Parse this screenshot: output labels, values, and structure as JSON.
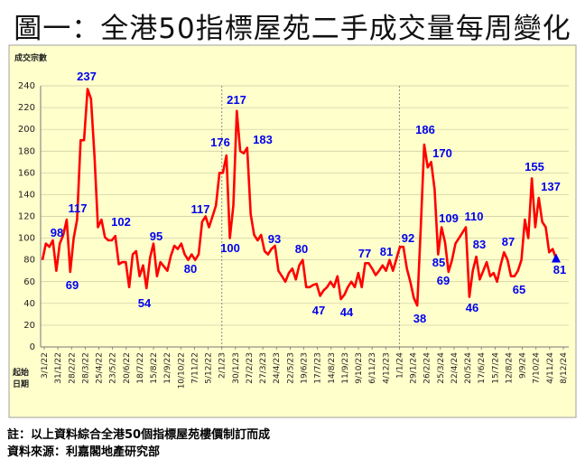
{
  "title": "圖一：全港50指標屋苑二手成交量每周變化",
  "notes": {
    "note1": "註：以上資料綜合全港50個指標屋苑樓價制訂而成",
    "note2": "資料來源：利嘉閣地產研究部"
  },
  "colors": {
    "panel": "#ffffcc",
    "line": "#ff0000",
    "label": "#0000ee",
    "marker": "#0000ee"
  },
  "chart_data": {
    "type": "line",
    "ylabel": "成交宗數",
    "xlabel": "起始日期",
    "ylim": [
      0,
      240
    ],
    "yticks": [
      0,
      20,
      40,
      60,
      80,
      100,
      120,
      140,
      160,
      180,
      200,
      220,
      240
    ],
    "grid": true,
    "x_tick_labels": [
      "3/1/22",
      "31/1/22",
      "28/2/22",
      "28/3/22",
      "25/4/22",
      "23/5/22",
      "20/6/22",
      "18/7/22",
      "15/8/22",
      "12/9/22",
      "10/10/22",
      "7/11/22",
      "5/12/22",
      "2/1/23",
      "30/1/23",
      "27/2/23",
      "27/3/23",
      "24/4/23",
      "22/5/23",
      "19/6/23",
      "17/7/23",
      "14/8/23",
      "11/9/23",
      "9/10/23",
      "6/11/23",
      "4/12/23",
      "1/1/24",
      "29/1/24",
      "26/2/24",
      "25/3/24",
      "22/4/24",
      "20/5/24",
      "17/6/24",
      "15/7/24",
      "12/8/24",
      "9/9/24",
      "7/10/24",
      "4/11/24",
      "8/12/24"
    ],
    "year_separators": [
      "2/1/23",
      "1/1/24"
    ],
    "series": [
      {
        "values": [
          80,
          95,
          92,
          98,
          70,
          95,
          103,
          117,
          69,
          100,
          117,
          190,
          190,
          237,
          228,
          175,
          110,
          117,
          101,
          98,
          98,
          102,
          76,
          78,
          78,
          55,
          85,
          88,
          65,
          75,
          54,
          82,
          95,
          65,
          78,
          74,
          70,
          84,
          93,
          90,
          95,
          85,
          80,
          85,
          80,
          85,
          115,
          120,
          110,
          120,
          130,
          160,
          160,
          176,
          100,
          130,
          217,
          180,
          178,
          183,
          122,
          103,
          98,
          103,
          88,
          85,
          90,
          93,
          70,
          65,
          60,
          68,
          72,
          62,
          75,
          80,
          55,
          55,
          57,
          58,
          47,
          52,
          55,
          60,
          55,
          65,
          44,
          48,
          55,
          60,
          55,
          68,
          55,
          77,
          77,
          72,
          66,
          70,
          75,
          70,
          80,
          70,
          81,
          92,
          92,
          72,
          60,
          45,
          38,
          110,
          186,
          165,
          170,
          145,
          85,
          110,
          96,
          69,
          80,
          95,
          100,
          105,
          110,
          46,
          70,
          83,
          62,
          70,
          78,
          65,
          68,
          60,
          75,
          87,
          80,
          65,
          65,
          70,
          80,
          117,
          100,
          155,
          110,
          137,
          115,
          110,
          87,
          90,
          81
        ]
      }
    ],
    "annotations": [
      {
        "text": "98",
        "value": 98
      },
      {
        "text": "117",
        "value": 117
      },
      {
        "text": "69",
        "value": 69
      },
      {
        "text": "237",
        "value": 237
      },
      {
        "text": "102",
        "value": 102
      },
      {
        "text": "54",
        "value": 54
      },
      {
        "text": "95",
        "value": 95
      },
      {
        "text": "80",
        "value": 80
      },
      {
        "text": "117",
        "value": 117
      },
      {
        "text": "176",
        "value": 176
      },
      {
        "text": "100",
        "value": 100
      },
      {
        "text": "217",
        "value": 217
      },
      {
        "text": "183",
        "value": 183
      },
      {
        "text": "93",
        "value": 93
      },
      {
        "text": "80",
        "value": 80
      },
      {
        "text": "47",
        "value": 47
      },
      {
        "text": "44",
        "value": 44
      },
      {
        "text": "77",
        "value": 77
      },
      {
        "text": "81",
        "value": 81
      },
      {
        "text": "92",
        "value": 92
      },
      {
        "text": "38",
        "value": 38
      },
      {
        "text": "186",
        "value": 186
      },
      {
        "text": "170",
        "value": 170
      },
      {
        "text": "85",
        "value": 85
      },
      {
        "text": "69",
        "value": 69
      },
      {
        "text": "109",
        "value": 109
      },
      {
        "text": "46",
        "value": 46
      },
      {
        "text": "110",
        "value": 110
      },
      {
        "text": "83",
        "value": 83
      },
      {
        "text": "87",
        "value": 87
      },
      {
        "text": "65",
        "value": 65
      },
      {
        "text": "155",
        "value": 155
      },
      {
        "text": "137",
        "value": 137
      },
      {
        "text": "81",
        "value": 81
      }
    ]
  }
}
